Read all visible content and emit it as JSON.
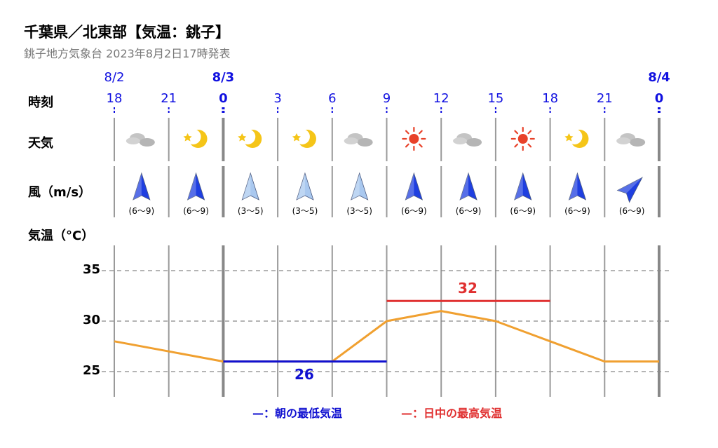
{
  "header": {
    "title": "千葉県／北東部【気温：銚子】",
    "subtitle": "銚子地方気象台 2023年8月2日17時発表"
  },
  "row_labels": {
    "time": "時刻",
    "weather": "天気",
    "wind": "風（m/s）",
    "temp": "気温（°C）"
  },
  "dates": [
    {
      "label": "8/2",
      "col": 0,
      "bold": false
    },
    {
      "label": "8/3",
      "col": 2,
      "bold": true
    },
    {
      "label": "8/4",
      "col": 10,
      "bold": true
    }
  ],
  "hours": [
    "18",
    "21",
    "0",
    "3",
    "6",
    "9",
    "12",
    "15",
    "18",
    "21",
    "0"
  ],
  "day_boundaries": [
    2,
    10
  ],
  "weather_icons": [
    "cloud-icon",
    "moon-icon",
    "moon-icon",
    "moon-icon",
    "cloud-icon",
    "sun-icon",
    "cloud-icon",
    "sun-icon",
    "moon-icon",
    "cloud-icon"
  ],
  "wind": [
    {
      "speed": "(6〜9)",
      "direction": "S",
      "strong": true
    },
    {
      "speed": "(6〜9)",
      "direction": "S",
      "strong": true
    },
    {
      "speed": "(3〜5)",
      "direction": "S",
      "strong": false
    },
    {
      "speed": "(3〜5)",
      "direction": "S",
      "strong": false
    },
    {
      "speed": "(3〜5)",
      "direction": "S",
      "strong": false
    },
    {
      "speed": "(6〜9)",
      "direction": "S",
      "strong": true
    },
    {
      "speed": "(6〜9)",
      "direction": "S",
      "strong": true
    },
    {
      "speed": "(6〜9)",
      "direction": "S",
      "strong": true
    },
    {
      "speed": "(6〜9)",
      "direction": "S",
      "strong": true
    },
    {
      "speed": "(6〜9)",
      "direction": "SW",
      "strong": true
    }
  ],
  "colors": {
    "date_text": "#1010e0",
    "temp_line": "#f0a030",
    "min_line": "#1010d0",
    "max_line": "#e03030",
    "arrow_strong": "#1f3fe0",
    "arrow_weak": "#a9c8ef",
    "sun": "#e8422a",
    "moon": "#f5c518",
    "cloud": "#c4c4c4"
  },
  "chart_data": {
    "type": "line",
    "ylabel": "気温（°C）",
    "ylim": [
      23.5,
      37
    ],
    "yticks": [
      25,
      30,
      35
    ],
    "grid": true,
    "x": [
      "8/2 18",
      "8/2 21",
      "8/3 0",
      "8/3 3",
      "8/3 6",
      "8/3 9",
      "8/3 12",
      "8/3 15",
      "8/3 18",
      "8/3 21",
      "8/4 0"
    ],
    "series": [
      {
        "values": [
          28,
          27,
          26,
          26,
          26,
          30,
          31,
          30,
          28,
          26,
          26
        ]
      }
    ],
    "min_temp": {
      "value": 26,
      "label": "26",
      "from": 2,
      "to": 5
    },
    "max_temp": {
      "value": 32,
      "label": "32",
      "from": 5,
      "to": 8
    },
    "legend": [
      {
        "text": "—：朝の最低気温",
        "color": "#1010d0"
      },
      {
        "text": "—：日中の最高気温",
        "color": "#e03030"
      }
    ]
  }
}
